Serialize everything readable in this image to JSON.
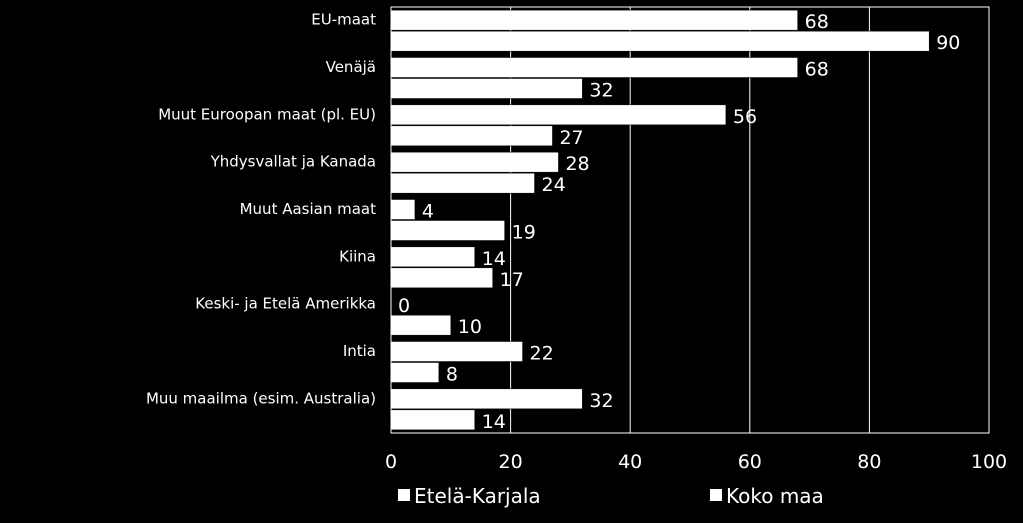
{
  "chart_data": {
    "type": "bar",
    "orientation": "horizontal",
    "title": "",
    "xlabel": "",
    "ylabel": "",
    "categories": [
      "EU-maat",
      "Venäjä",
      "Muut Euroopan maat (pl. EU)",
      "Yhdysvallat ja Kanada",
      "Muut Aasian maat",
      "Kiina",
      "Keski- ja Etelä Amerikka",
      "Intia",
      "Muu maailma (esim. Australia)"
    ],
    "series": [
      {
        "name": "Etelä-Karjala",
        "values": [
          68,
          68,
          56,
          28,
          4,
          14,
          0,
          22,
          32
        ]
      },
      {
        "name": "Koko maa",
        "values": [
          90,
          32,
          27,
          24,
          19,
          17,
          10,
          8,
          14
        ]
      }
    ],
    "xlim": [
      0,
      100
    ],
    "xticks": [
      "0",
      "20",
      "40",
      "60",
      "80",
      "100"
    ],
    "grid": true,
    "legend_position": "bottom",
    "colors": {
      "background": "#000000",
      "bar": "#ffffff",
      "text": "#ffffff",
      "grid": "#ffffff",
      "bar_edge": "#000000"
    }
  }
}
